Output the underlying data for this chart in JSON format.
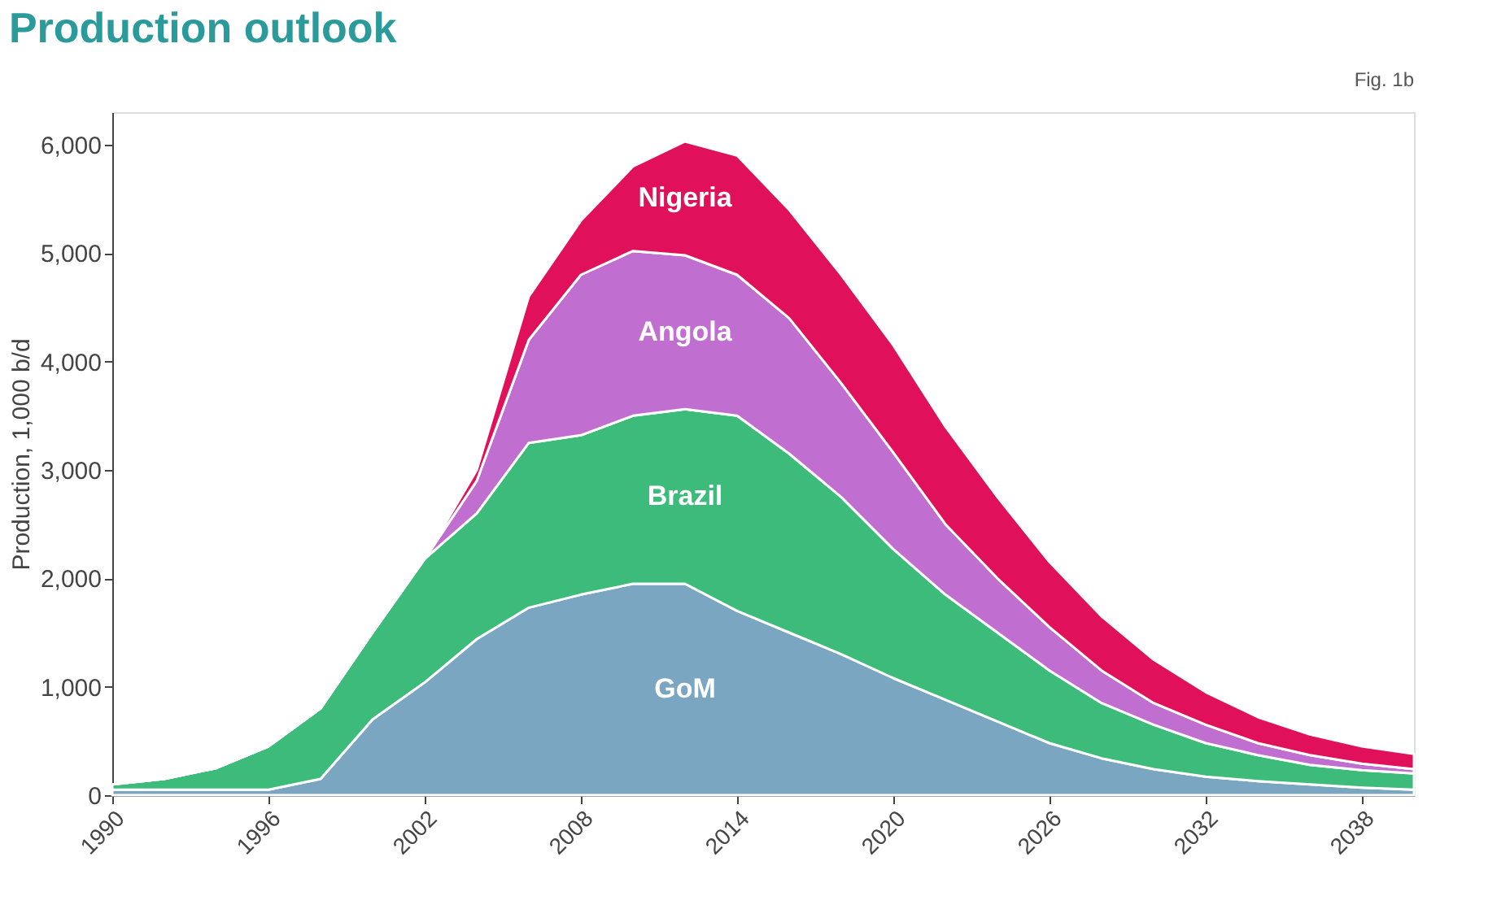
{
  "chart_data": {
    "type": "area",
    "stacked": true,
    "title": "Production outlook",
    "ylabel": "Production, 1,000 b/d",
    "annotations": [
      "Fig. 1b"
    ],
    "x": [
      1990,
      1992,
      1994,
      1996,
      1998,
      2000,
      2002,
      2004,
      2006,
      2008,
      2010,
      2012,
      2014,
      2016,
      2018,
      2020,
      2022,
      2024,
      2026,
      2028,
      2030,
      2032,
      2034,
      2036,
      2038,
      2040
    ],
    "series": [
      {
        "name": "GoM",
        "color": "#7aa6c2",
        "values": [
          50,
          50,
          50,
          50,
          150,
          700,
          1040,
          1440,
          1730,
          1850,
          1950,
          1950,
          1700,
          1500,
          1300,
          1080,
          880,
          680,
          480,
          340,
          240,
          170,
          130,
          100,
          70,
          50
        ]
      },
      {
        "name": "Brazil",
        "color": "#3dbb7a",
        "values": [
          50,
          100,
          200,
          400,
          650,
          800,
          1140,
          1160,
          1520,
          1470,
          1550,
          1610,
          1800,
          1650,
          1450,
          1190,
          970,
          820,
          670,
          510,
          410,
          310,
          240,
          180,
          160,
          150
        ]
      },
      {
        "name": "Angola",
        "color": "#c06fd0",
        "values": [
          0,
          0,
          0,
          0,
          0,
          0,
          0,
          300,
          950,
          1480,
          1520,
          1420,
          1300,
          1250,
          1050,
          890,
          650,
          500,
          400,
          300,
          200,
          170,
          110,
          90,
          60,
          40
        ]
      },
      {
        "name": "Nigeria",
        "color": "#e0105a",
        "values": [
          0,
          0,
          0,
          0,
          0,
          0,
          0,
          100,
          400,
          500,
          780,
          1050,
          1100,
          1000,
          1000,
          990,
          900,
          750,
          600,
          500,
          400,
          300,
          240,
          190,
          160,
          140
        ]
      }
    ],
    "xlim": [
      1990,
      2040
    ],
    "xticks": [
      1990,
      1996,
      2002,
      2008,
      2014,
      2020,
      2026,
      2032,
      2038
    ],
    "ylim": [
      0,
      6300
    ],
    "yticks": [
      0,
      {
        "value": 1000,
        "label": "1,000"
      },
      {
        "value": 2000,
        "label": "2,000"
      },
      {
        "value": 3000,
        "label": "3,000"
      },
      {
        "value": 4000,
        "label": "4,000"
      },
      {
        "value": 5000,
        "label": "5,000"
      },
      {
        "value": 6000,
        "label": "6,000"
      }
    ],
    "grid": false,
    "legend": false
  }
}
